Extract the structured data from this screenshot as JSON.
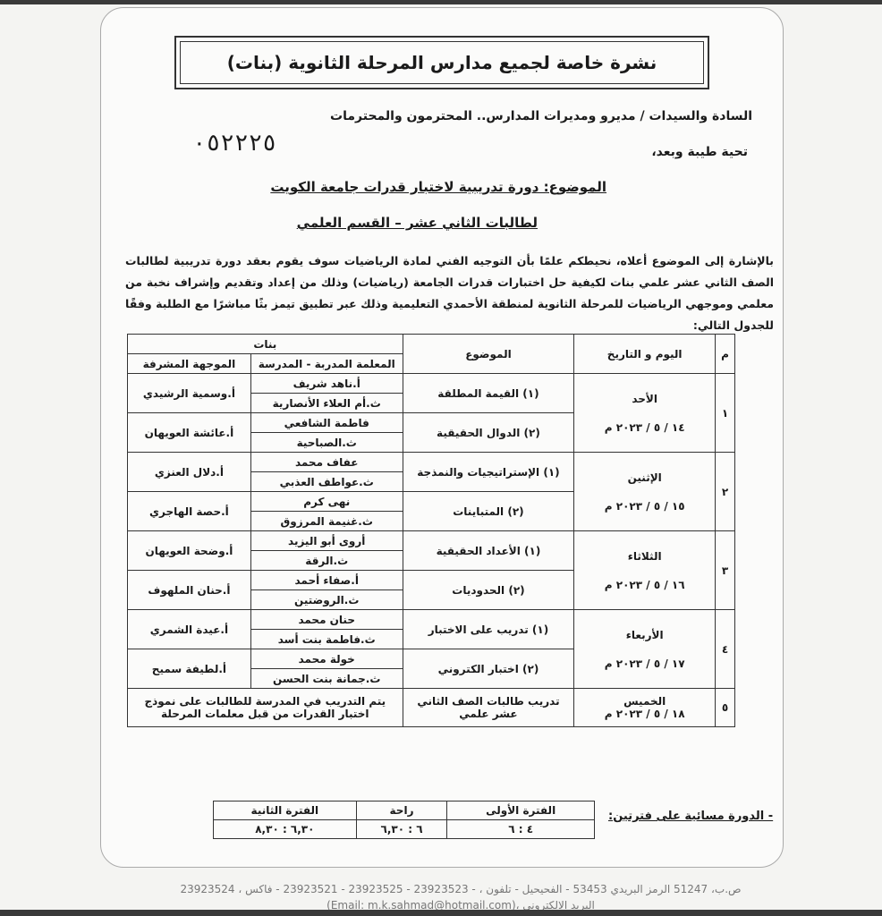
{
  "title": "نشرة خاصة لجميع مدارس المرحلة الثانوية (بنات)",
  "salutation": "السادة والسيدات / مديرو ومديرات المدارس.. المحترمون والمحترمات",
  "greeting": "تحية طيبة وبعد،",
  "ref_number": "٠٥٢٢٢٥",
  "subject": "الموضوع: دورة تدريبية لاختبار قدرات جامعة الكويت",
  "subtitle": "لطالبات الثاني عشر – القسم العلمي",
  "body": "بالإشارة إلى الموضوع أعلاه، نحيطكم علمًا بأن التوجيه الفني لمادة الرياضيات سوف يقوم بعقد دورة تدريبية لطالبات الصف الثاني عشر علمي بنات لكيفية حل اختبارات قدرات الجامعة (رياضيات) وذلك من إعداد وتقديم وإشراف نخبة من معلمي وموجهي الرياضيات للمرحلة الثانوية لمنطقة الأحمدي التعليمية وذلك عبر تطبيق تيمز بثًا مباشرًا مع الطلبة وفقًا للجدول التالي:",
  "table": {
    "headers": {
      "num": "م",
      "day": "اليوم و التاريخ",
      "topic": "الموضوع",
      "girls": "بنات",
      "teacher": "المعلمة المدربة - المدرسة",
      "supervisor": "الموجهة المشرفة"
    },
    "days": [
      {
        "num": "١",
        "day": "الأحد",
        "date": "١٤ / ٥ / ٢٠٢٣ م",
        "sessions": [
          {
            "topic": "(١) القيمة المطلقة",
            "teacher": "أ.ناهد شريف",
            "school": "ث.أم العلاء الأنصارية",
            "supervisor": "أ.وسمية الرشيدي"
          },
          {
            "topic": "(٢) الدوال الحقيقية",
            "teacher": "فاطمة الشافعي",
            "school": "ث.الصباحية",
            "supervisor": "أ.عائشة العويهان"
          }
        ]
      },
      {
        "num": "٢",
        "day": "الإثنين",
        "date": "١٥ / ٥ / ٢٠٢٣ م",
        "sessions": [
          {
            "topic": "(١) الإستراتيجيات والنمذجة",
            "teacher": "عفاف محمد",
            "school": "ث.عواطف العذبي",
            "supervisor": "أ.دلال العنزي"
          },
          {
            "topic": "(٢) المتباينات",
            "teacher": "نهى كرم",
            "school": "ث.غنيمة المرزوق",
            "supervisor": "أ.حصة الهاجري"
          }
        ]
      },
      {
        "num": "٣",
        "day": "الثلاثاء",
        "date": "١٦ / ٥ / ٢٠٢٣ م",
        "sessions": [
          {
            "topic": "(١) الأعداد الحقيقية",
            "teacher": "أروى أبو اليزيد",
            "school": "ث.الرقة",
            "supervisor": "أ.وضحة العويهان"
          },
          {
            "topic": "(٢) الحدوديات",
            "teacher": "أ.صفاء أحمد",
            "school": "ث.الروضتين",
            "supervisor": "أ.حنان الملهوف"
          }
        ]
      },
      {
        "num": "٤",
        "day": "الأربعاء",
        "date": "١٧ / ٥ / ٢٠٢٣ م",
        "sessions": [
          {
            "topic": "(١) تدريب على الاختبار",
            "teacher": "حنان محمد",
            "school": "ث.فاطمة بنت أسد",
            "supervisor": "أ.عيدة الشمري"
          },
          {
            "topic": "(٢) اختبار الكتروني",
            "teacher": "خولة محمد",
            "school": "ث.جمانة بنت الحسن",
            "supervisor": "أ.لطيفة سميح"
          }
        ]
      }
    ],
    "last": {
      "num": "٥",
      "day": "الخميس",
      "date": "١٨ / ٥ / ٢٠٢٣ م",
      "topic": "تدريب طالبات الصف الثاني عشر علمي",
      "note": "يتم التدريب في المدرسة للطالبات على نموذج اختبار القدرات من قبل معلمات المرحلة"
    }
  },
  "periods_note": "- الدورة مسائية على فترتين:",
  "periods": {
    "headers": [
      "الفترة الأولى",
      "راحة",
      "الفترة الثانية"
    ],
    "values": [
      "٤ : ٦",
      "٦ : ٦,٣٠",
      "٦,٣٠ : ٨,٣٠"
    ]
  },
  "footer": {
    "address": "ص.ب، 51247 الرمز البريدي 53453 - الفحيحيل - تلفون ، - 23923523 - 23923525 - 23923521 - فاكس ، 23923524",
    "email": "البريد الالكتروني ،(Email: m.k.sahmad@hotmail.com)"
  }
}
